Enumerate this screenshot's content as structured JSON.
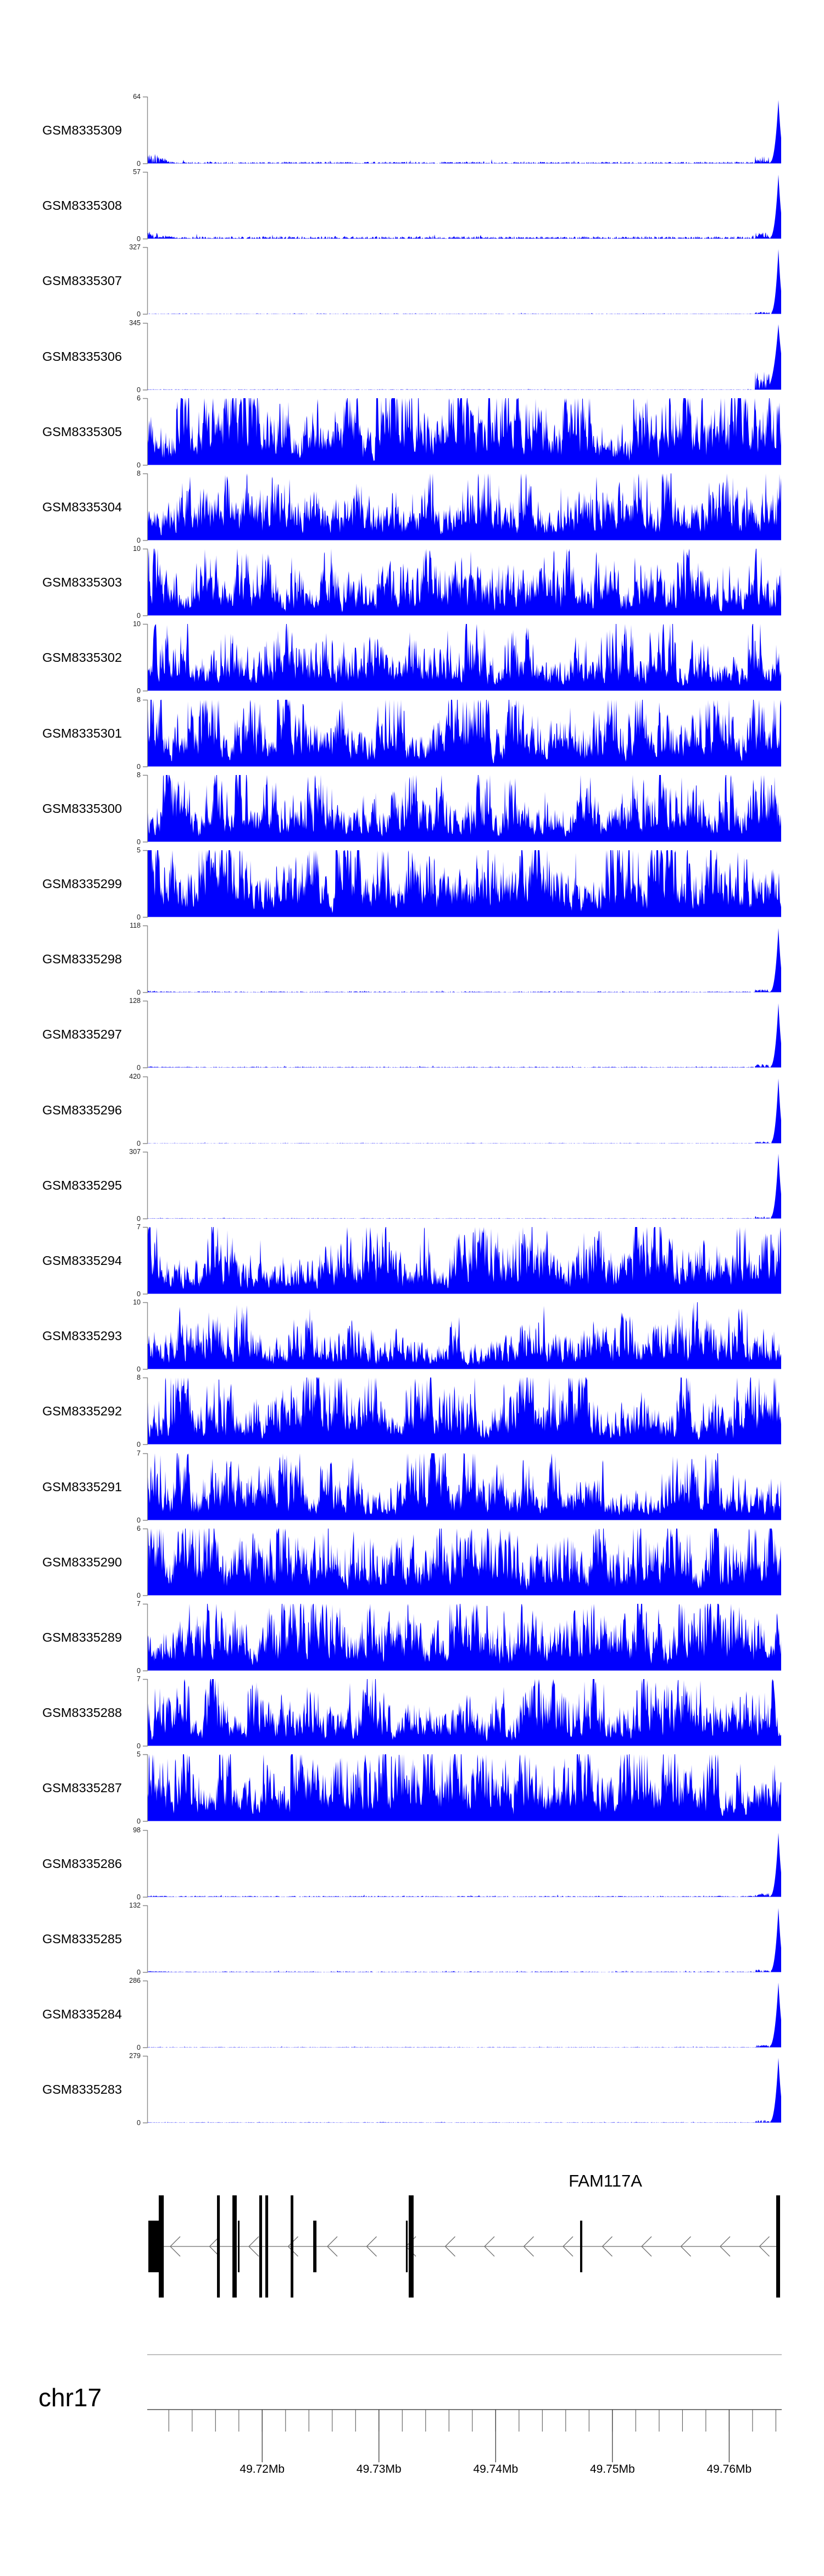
{
  "figure": {
    "background": "#ffffff",
    "data_color": "#0000fe",
    "bracket_color": "#8a8a8a",
    "gene_color": "#000000",
    "gene_line_color": "#6e6e6e",
    "ruler_color": "#4a4a4a"
  },
  "chart_data": {
    "type": "genome-coverage-tracks",
    "chromosome": "chr17",
    "chromosome_label": "chr17",
    "window_mb": [
      49.7102,
      49.7645
    ],
    "axis": {
      "major_ticks": [
        {
          "mb": 49.72,
          "label": "49.72Mb"
        },
        {
          "mb": 49.73,
          "label": "49.73Mb"
        },
        {
          "mb": 49.74,
          "label": "49.74Mb"
        },
        {
          "mb": 49.75,
          "label": "49.75Mb"
        },
        {
          "mb": 49.76,
          "label": "49.76Mb"
        }
      ],
      "minor_tick_start_mb": 49.712,
      "minor_tick_interval_mb": 0.002,
      "minor_tick_end_mb": 49.764
    },
    "tracks": [
      {
        "label": "GSM8335309",
        "ymax": 64,
        "ymin": 0,
        "profile": "sparse-right-spike",
        "noise": 0.028,
        "scatter": 0.045,
        "left_bump": 0.2,
        "pre_bump": 0.11,
        "spike_apex": 0.95,
        "spike_width": 19,
        "seed": 101
      },
      {
        "label": "GSM8335308",
        "ymax": 57,
        "ymin": 0,
        "profile": "sparse-right-spike",
        "noise": 0.038,
        "scatter": 0.05,
        "left_bump": 0.13,
        "pre_bump": 0.1,
        "spike_apex": 0.96,
        "spike_width": 19,
        "seed": 102
      },
      {
        "label": "GSM8335307",
        "ymax": 327,
        "ymin": 0,
        "profile": "sparse-right-spike",
        "noise": 0.007,
        "scatter": 0.012,
        "left_bump": 0.0,
        "pre_bump": 0.03,
        "spike_apex": 0.97,
        "spike_width": 17,
        "seed": 103
      },
      {
        "label": "GSM8335306",
        "ymax": 345,
        "ymin": 0,
        "profile": "sparse-right-spike",
        "noise": 0.007,
        "scatter": 0.012,
        "left_bump": 0.0,
        "pre_bump": 0.3,
        "spike_apex": 0.98,
        "spike_width": 28,
        "seed": 104
      },
      {
        "label": "GSM8335305",
        "ymax": 6,
        "ymin": 0,
        "profile": "dense",
        "level": 0.5,
        "seed": 105
      },
      {
        "label": "GSM8335304",
        "ymax": 8,
        "ymin": 0,
        "profile": "dense",
        "level": 0.42,
        "seed": 106
      },
      {
        "label": "GSM8335303",
        "ymax": 10,
        "ymin": 0,
        "profile": "dense",
        "level": 0.34,
        "seed": 107
      },
      {
        "label": "GSM8335302",
        "ymax": 10,
        "ymin": 0,
        "profile": "dense",
        "level": 0.36,
        "left_peak": true,
        "seed": 108
      },
      {
        "label": "GSM8335301",
        "ymax": 8,
        "ymin": 0,
        "profile": "dense",
        "level": 0.43,
        "seed": 109
      },
      {
        "label": "GSM8335300",
        "ymax": 8,
        "ymin": 0,
        "profile": "dense",
        "level": 0.4,
        "seed": 110
      },
      {
        "label": "GSM8335299",
        "ymax": 5,
        "ymin": 0,
        "profile": "dense",
        "level": 0.52,
        "seed": 111
      },
      {
        "label": "GSM8335298",
        "ymax": 118,
        "ymin": 0,
        "profile": "sparse-right-spike",
        "noise": 0.014,
        "scatter": 0.02,
        "left_bump": 0.03,
        "pre_bump": 0.05,
        "spike_apex": 0.96,
        "spike_width": 18,
        "seed": 112
      },
      {
        "label": "GSM8335297",
        "ymax": 128,
        "ymin": 0,
        "profile": "sparse-right-spike",
        "noise": 0.013,
        "scatter": 0.02,
        "left_bump": 0.02,
        "pre_bump": 0.05,
        "spike_apex": 0.96,
        "spike_width": 18,
        "seed": 113
      },
      {
        "label": "GSM8335296",
        "ymax": 420,
        "ymin": 0,
        "profile": "sparse-right-spike",
        "noise": 0.006,
        "scatter": 0.01,
        "left_bump": 0.0,
        "pre_bump": 0.03,
        "spike_apex": 0.97,
        "spike_width": 17,
        "seed": 114
      },
      {
        "label": "GSM8335295",
        "ymax": 307,
        "ymin": 0,
        "profile": "sparse-right-spike",
        "noise": 0.007,
        "scatter": 0.01,
        "left_bump": 0.0,
        "pre_bump": 0.04,
        "spike_apex": 0.97,
        "spike_width": 18,
        "seed": 115
      },
      {
        "label": "GSM8335294",
        "ymax": 7,
        "ymin": 0,
        "profile": "dense",
        "level": 0.4,
        "seed": 116
      },
      {
        "label": "GSM8335293",
        "ymax": 10,
        "ymin": 0,
        "profile": "dense",
        "level": 0.33,
        "seed": 117
      },
      {
        "label": "GSM8335292",
        "ymax": 8,
        "ymin": 0,
        "profile": "dense",
        "level": 0.41,
        "seed": 118
      },
      {
        "label": "GSM8335291",
        "ymax": 7,
        "ymin": 0,
        "profile": "dense",
        "level": 0.38,
        "seed": 119
      },
      {
        "label": "GSM8335290",
        "ymax": 6,
        "ymin": 0,
        "profile": "dense",
        "level": 0.46,
        "seed": 120
      },
      {
        "label": "GSM8335289",
        "ymax": 7,
        "ymin": 0,
        "profile": "dense",
        "level": 0.4,
        "seed": 121
      },
      {
        "label": "GSM8335288",
        "ymax": 7,
        "ymin": 0,
        "profile": "dense",
        "level": 0.4,
        "seed": 122
      },
      {
        "label": "GSM8335287",
        "ymax": 5,
        "ymin": 0,
        "profile": "dense",
        "level": 0.5,
        "seed": 123
      },
      {
        "label": "GSM8335286",
        "ymax": 98,
        "ymin": 0,
        "profile": "sparse-right-spike",
        "noise": 0.016,
        "scatter": 0.025,
        "left_bump": 0.03,
        "pre_bump": 0.06,
        "spike_apex": 0.96,
        "spike_width": 18,
        "seed": 124
      },
      {
        "label": "GSM8335285",
        "ymax": 132,
        "ymin": 0,
        "profile": "sparse-right-spike",
        "noise": 0.013,
        "scatter": 0.02,
        "left_bump": 0.02,
        "pre_bump": 0.05,
        "spike_apex": 0.96,
        "spike_width": 18,
        "seed": 125
      },
      {
        "label": "GSM8335284",
        "ymax": 286,
        "ymin": 0,
        "profile": "sparse-right-spike",
        "noise": 0.008,
        "scatter": 0.012,
        "left_bump": 0.0,
        "pre_bump": 0.04,
        "spike_apex": 0.97,
        "spike_width": 20,
        "seed": 126
      },
      {
        "label": "GSM8335283",
        "ymax": 279,
        "ymin": 0,
        "profile": "sparse-right-spike",
        "noise": 0.008,
        "scatter": 0.012,
        "left_bump": 0.0,
        "pre_bump": 0.04,
        "spike_apex": 0.97,
        "spike_width": 19,
        "seed": 127
      }
    ],
    "gene": {
      "name": "FAM117A",
      "strand": "-",
      "utr_box_mb": [
        49.71025,
        49.71152
      ],
      "tall_exons_mb": [
        [
          49.71114,
          49.71157
        ],
        [
          49.71613,
          49.71637
        ],
        [
          49.71745,
          49.71782
        ],
        [
          49.71975,
          49.71999
        ],
        [
          49.72027,
          49.72051
        ],
        [
          49.72244,
          49.72267
        ],
        [
          49.73255,
          49.73297
        ],
        [
          49.76403,
          49.76436
        ]
      ],
      "short_exons_mb": [
        [
          49.71792,
          49.71806
        ],
        [
          49.72437,
          49.72465
        ],
        [
          49.73231,
          49.73246
        ],
        [
          49.74723,
          49.74742
        ]
      ]
    }
  }
}
